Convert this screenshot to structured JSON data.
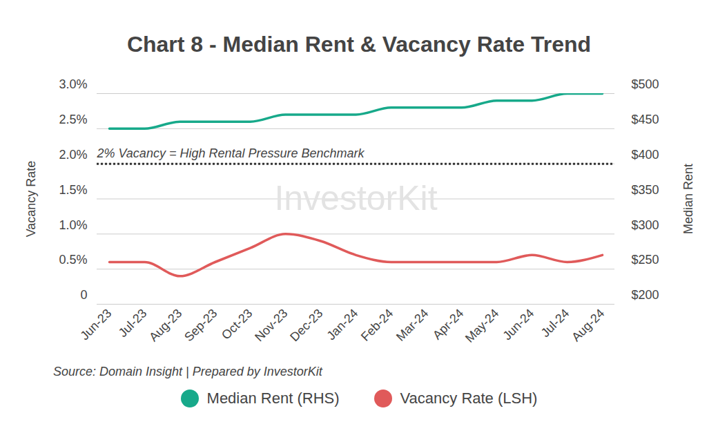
{
  "chart_data": {
    "type": "line",
    "title": "Chart 8 - Median Rent & Vacancy Rate Trend",
    "caption": "Source: Domain Insight | Prepared by InvestorKit",
    "watermark": "InvestorKit",
    "y_label": "Vacancy Rate",
    "y2_label": "Median Rent",
    "x": [
      "Jun-23",
      "Jul-23",
      "Aug-23",
      "Sep-23",
      "Oct-23",
      "Nov-23",
      "Dec-23",
      "Jan-24",
      "Feb-24",
      "Mar-24",
      "Apr-24",
      "May-24",
      "Jun-24",
      "Jul-24",
      "Aug-24"
    ],
    "series": [
      {
        "name": "Median Rent (RHS)",
        "color": "#17a98a",
        "axis": "y2",
        "values": [
          450,
          450,
          460,
          460,
          460,
          470,
          470,
          470,
          480,
          480,
          480,
          490,
          490,
          500,
          500
        ]
      },
      {
        "name": "Vacancy Rate (LSH)",
        "color": "#e05a5a",
        "values": [
          0.6,
          0.6,
          0.4,
          0.6,
          0.8,
          1.0,
          0.9,
          0.7,
          0.6,
          0.6,
          0.6,
          0.6,
          0.7,
          0.6,
          0.7
        ]
      }
    ],
    "ylim": [
      0,
      3
    ],
    "yticks": [
      0,
      {
        "value": 0.5,
        "label": "0.5%"
      },
      {
        "value": 1.0,
        "label": "1.0%"
      },
      {
        "value": 1.5,
        "label": "1.5%"
      },
      {
        "value": 2.0,
        "label": "2.0%"
      },
      {
        "value": 2.5,
        "label": "2.5%"
      },
      {
        "value": 3.0,
        "label": "3.0%"
      }
    ],
    "y2lim": [
      200,
      500
    ],
    "y2ticks": [
      {
        "value": 200,
        "label": "$200"
      },
      {
        "value": 250,
        "label": "$250"
      },
      {
        "value": 300,
        "label": "$300"
      },
      {
        "value": 350,
        "label": "$350"
      },
      {
        "value": 400,
        "label": "$400"
      },
      {
        "value": 450,
        "label": "$450"
      },
      {
        "value": 500,
        "label": "$500"
      }
    ],
    "annotations": [
      {
        "text": "2% Vacancy = High Rental Pressure Benchmark",
        "y": 2.0,
        "line_style": "dotted"
      }
    ],
    "grid": true,
    "legend": "bottom"
  }
}
